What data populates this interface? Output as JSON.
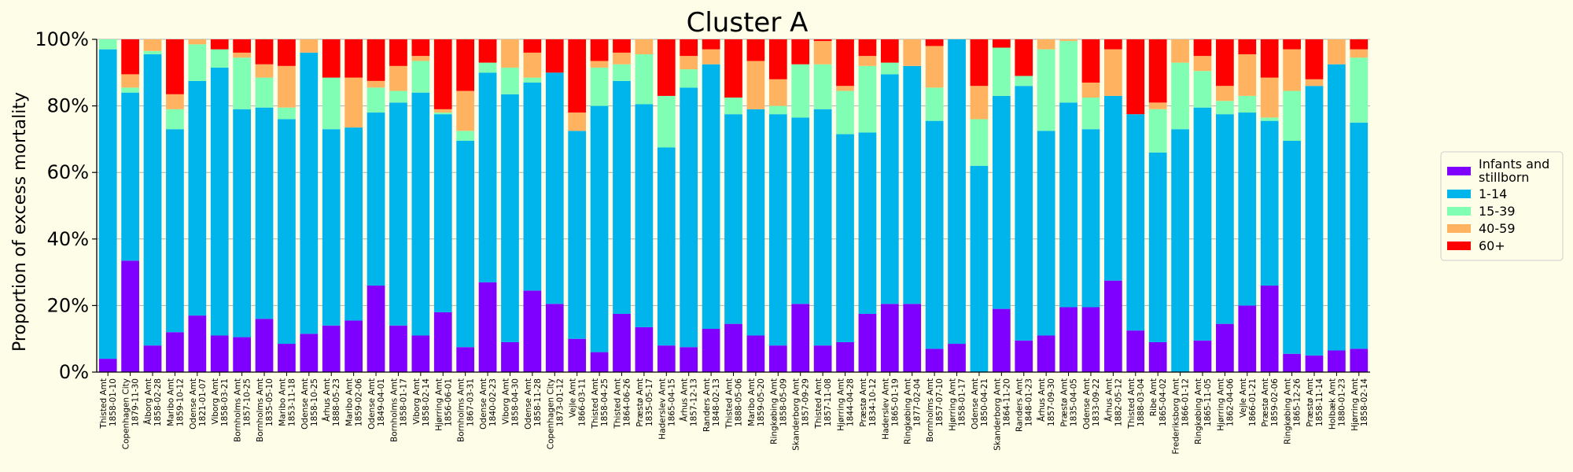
{
  "chart_data": {
    "type": "bar",
    "stacked": true,
    "title": "Cluster A",
    "ylabel": "Proportion of excess mortality",
    "xlabel": "",
    "ylim": [
      0,
      100
    ],
    "yticks": [
      "0%",
      "20%",
      "40%",
      "60%",
      "80%",
      "100%"
    ],
    "grid": "horizontal",
    "legend_position": "right",
    "colors": [
      "#8000ff",
      "#00b4ec",
      "#80ffb4",
      "#ffb360",
      "#ff0000"
    ],
    "series_names": [
      "Infants and stillborn",
      "1-14",
      "15-39",
      "40-59",
      "60+"
    ],
    "categories": [
      [
        "Thisted Amt",
        "1858-01-10"
      ],
      [
        "Copenhagen City",
        "1879-11-30"
      ],
      [
        "Ålborg Amt",
        "1858-02-28"
      ],
      [
        "Maribo Amt",
        "1859-10-12"
      ],
      [
        "Odense Amt",
        "1821-01-07"
      ],
      [
        "Viborg Amt",
        "1858-03-21"
      ],
      [
        "Bornholms Amt",
        "1857-10-25"
      ],
      [
        "Bornholms Amt",
        "1835-05-10"
      ],
      [
        "Maribo Amt",
        "1853-11-18"
      ],
      [
        "Odense Amt",
        "1858-10-25"
      ],
      [
        "Århus Amt",
        "1888-05-23"
      ],
      [
        "Maribo Amt",
        "1859-02-06"
      ],
      [
        "Odense Amt",
        "1849-04-01"
      ],
      [
        "Bornholms Amt",
        "1858-01-17"
      ],
      [
        "Viborg Amt",
        "1858-02-14"
      ],
      [
        "Hjørring Amt",
        "1856-06-01"
      ],
      [
        "Bornholms Amt",
        "1867-03-31"
      ],
      [
        "Odense Amt",
        "1840-02-23"
      ],
      [
        "Viborg Amt",
        "1858-04-30"
      ],
      [
        "Odense Amt",
        "1858-11-28"
      ],
      [
        "Copenhagen City",
        "1873-01-12"
      ],
      [
        "Vejle Amt",
        "1866-03-11"
      ],
      [
        "Thisted Amt",
        "1858-04-25"
      ],
      [
        "Thisted Amt",
        "1864-06-26"
      ],
      [
        "Præstø Amt",
        "1835-05-17"
      ],
      [
        "Haderslev Amt",
        "1865-04-15"
      ],
      [
        "Århus Amt",
        "1857-12-13"
      ],
      [
        "Randers Amt",
        "1848-02-13"
      ],
      [
        "Thisted Amt",
        "1888-05-06"
      ],
      [
        "Maribo Amt",
        "1859-05-20"
      ],
      [
        "Ringkøbing Amt",
        "1858-05-09"
      ],
      [
        "Skanderborg Amt",
        "1857-09-29"
      ],
      [
        "Thisted Amt",
        "1857-11-08"
      ],
      [
        "Hjørring Amt",
        "1844-04-28"
      ],
      [
        "Præstø Amt",
        "1834-10-12"
      ],
      [
        "Haderslev Amt",
        "1865-01-19"
      ],
      [
        "Ringkøbing Amt",
        "1877-02-04"
      ],
      [
        "Bornholms Amt",
        "1857-07-10"
      ],
      [
        "Hjørring Amt",
        "1858-01-17"
      ],
      [
        "Odense Amt",
        "1850-04-21"
      ],
      [
        "Skanderborg Amt",
        "1864-11-20"
      ],
      [
        "Randers Amt",
        "1848-01-23"
      ],
      [
        "Århus Amt",
        "1857-09-30"
      ],
      [
        "Præstø Amt",
        "1835-04-05"
      ],
      [
        "Odense Amt",
        "1833-09-22"
      ],
      [
        "Århus Amt",
        "1882-05-12"
      ],
      [
        "Thisted Amt",
        "1888-03-04"
      ],
      [
        "Ribe Amt",
        "1865-04-02"
      ],
      [
        "Frederiksborg Amt",
        "1866-01-12"
      ],
      [
        "Ringkøbing Amt",
        "1865-11-05"
      ],
      [
        "Hjørring Amt",
        "1862-04-06"
      ],
      [
        "Vejle Amt",
        "1866-01-21"
      ],
      [
        "Præstø Amt",
        "1859-02-06"
      ],
      [
        "Ringkøbing Amt",
        "1865-12-26"
      ],
      [
        "Præstø Amt",
        "1858-11-14"
      ],
      [
        "Holbæk Amt",
        "1880-01-23"
      ],
      [
        "Hjørring Amt",
        "1858-02-14"
      ]
    ],
    "series": [
      {
        "name": "Infants and stillborn",
        "values": [
          4,
          33.5,
          8,
          12,
          17,
          11,
          10.5,
          16,
          8.5,
          11.5,
          14,
          15.5,
          26,
          14,
          11,
          18,
          7.5,
          27,
          9,
          24.5,
          20.5,
          10,
          6,
          17.5,
          13.5,
          8,
          7.5,
          13,
          14.5,
          11,
          8,
          20.5,
          8,
          9,
          17.5,
          20.5,
          20.5,
          7,
          8.5,
          0,
          19,
          9.5,
          11,
          19.5,
          19.5,
          27.5,
          12.5,
          9,
          0,
          9.5,
          14.5,
          20,
          26,
          5.5,
          5,
          6.5,
          7
        ]
      },
      {
        "name": "1-14",
        "values": [
          93,
          50.5,
          87.5,
          61,
          70.5,
          80.5,
          68.5,
          63.5,
          67.5,
          84.5,
          59,
          58,
          52,
          67,
          73,
          59.5,
          62,
          63,
          74.5,
          62.5,
          69.5,
          62.5,
          74,
          70,
          67,
          59.5,
          78,
          79.5,
          63,
          68,
          69.5,
          56,
          71,
          62.5,
          54.5,
          69,
          71.5,
          68.5,
          91.5,
          62,
          64,
          76.5,
          61.5,
          61.5,
          53.5,
          55.5,
          65,
          57,
          73,
          70,
          63,
          58,
          49.5,
          64,
          81,
          86,
          68
        ]
      },
      {
        "name": "15-39",
        "values": [
          3,
          1.5,
          1,
          6,
          11,
          5.5,
          15.5,
          9,
          3.5,
          0,
          15.5,
          0,
          7.5,
          3.5,
          9.5,
          0.5,
          3,
          3,
          8,
          1.5,
          0,
          0,
          11.5,
          5,
          15,
          15.5,
          5.5,
          0,
          5,
          0,
          2.5,
          16,
          13.5,
          13,
          20,
          3.5,
          0,
          10,
          0,
          14,
          14.5,
          3,
          24.5,
          18.5,
          9.5,
          0,
          0,
          13,
          20,
          11,
          4,
          5,
          1,
          15,
          0,
          0,
          19.5
        ]
      },
      {
        "name": "40-59",
        "values": [
          0,
          4,
          3.5,
          4.5,
          1.5,
          0,
          1.5,
          4,
          12.5,
          4,
          0,
          15,
          2,
          7.5,
          1.5,
          1,
          12,
          0,
          8.5,
          7.5,
          0,
          5.5,
          2,
          3.5,
          4.5,
          0,
          4,
          4.5,
          0,
          14.5,
          8,
          0,
          7,
          1.5,
          3,
          0,
          8,
          12.5,
          0,
          10,
          0,
          0,
          3,
          0.5,
          4.5,
          14,
          0,
          2,
          7,
          4.5,
          4.5,
          12.5,
          12,
          12.5,
          2,
          7.5,
          2.5
        ]
      },
      {
        "name": "60+",
        "values": [
          0,
          10.5,
          0,
          16.5,
          0,
          3,
          4,
          7.5,
          8,
          0,
          11.5,
          11.5,
          12.5,
          8,
          5,
          21,
          15.5,
          7,
          0,
          4,
          10,
          22,
          6.5,
          4,
          0,
          17,
          5,
          3,
          17.5,
          6.5,
          12,
          7.5,
          0.5,
          14,
          5,
          7,
          0,
          2,
          0,
          14,
          2.5,
          11,
          0,
          0,
          13,
          3,
          22.5,
          19,
          0,
          5,
          14,
          4.5,
          11.5,
          3,
          12,
          0,
          3
        ]
      }
    ]
  }
}
